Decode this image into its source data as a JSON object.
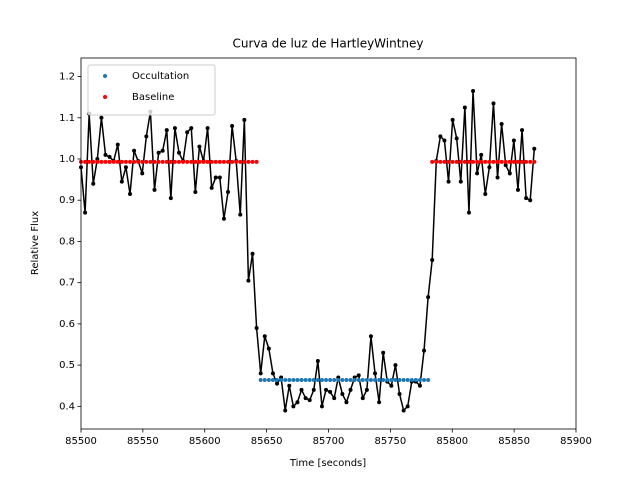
{
  "chart_data": {
    "type": "line",
    "title": "Curva de luz de HartleyWintney",
    "x_label": "Time [seconds]",
    "y_label": "Relative Flux",
    "xlim": [
      85500,
      85900
    ],
    "xticks": [
      85500,
      85550,
      85600,
      85650,
      85700,
      85750,
      85800,
      85850,
      85900
    ],
    "ylim": [
      0.345,
      1.245
    ],
    "yticks": [
      0.4,
      0.5,
      0.6,
      0.7,
      0.8,
      0.9,
      {
        "value": 1,
        "label": "1.0"
      },
      1.1,
      1.2
    ],
    "legend": "upper left",
    "x": [
      85500,
      85503.3,
      85506.6,
      85509.9,
      85513.2,
      85516.5,
      85519.8,
      85523.1,
      85526.4,
      85529.7,
      85533,
      85536.3,
      85539.6,
      85542.9,
      85546.2,
      85549.5,
      85552.8,
      85556.1,
      85559.4,
      85562.7,
      85566,
      85569.3,
      85572.6,
      85575.9,
      85579.2,
      85582.5,
      85585.8,
      85589.1,
      85592.4,
      85595.7,
      85599,
      85602.3,
      85605.6,
      85608.9,
      85612.2,
      85615.5,
      85618.8,
      85622.1,
      85625.4,
      85628.7,
      85632,
      85635.3,
      85638.6,
      85641.9,
      85645.2,
      85648.5,
      85651.8,
      85655.1,
      85658.4,
      85661.7,
      85665,
      85668.3,
      85671.6,
      85674.9,
      85678.2,
      85681.5,
      85684.8,
      85688.1,
      85691.4,
      85694.7,
      85698,
      85701.3,
      85704.6,
      85707.9,
      85711.2,
      85714.5,
      85717.8,
      85721.1,
      85724.4,
      85727.7,
      85731,
      85734.3,
      85737.6,
      85740.9,
      85744.2,
      85747.5,
      85750.8,
      85754.1,
      85757.4,
      85760.7,
      85764,
      85767.3,
      85770.6,
      85773.9,
      85777.2,
      85780.5,
      85783.8,
      85787.1,
      85790.4,
      85793.7,
      85797,
      85800.3,
      85803.6,
      85806.9,
      85810.2,
      85813.5,
      85816.8,
      85820.1,
      85823.4,
      85826.7,
      85830,
      85833.3,
      85836.6,
      85839.9,
      85843.2,
      85846.5,
      85849.8,
      85853.1,
      85856.4,
      85859.7,
      85863,
      85866.3
    ],
    "series": [
      {
        "color": "#000000",
        "style": "line-marker",
        "values": [
          0.98,
          0.87,
          1.11,
          0.94,
          1.0,
          1.1,
          1.01,
          1.005,
          0.995,
          1.035,
          0.945,
          0.98,
          0.915,
          1.02,
          0.995,
          0.965,
          1.055,
          1.115,
          0.925,
          1.015,
          1.02,
          1.07,
          0.905,
          1.075,
          1.015,
          0.995,
          1.065,
          1.075,
          0.92,
          1.03,
          0.995,
          1.075,
          0.93,
          0.955,
          0.955,
          0.855,
          0.92,
          1.08,
          0.995,
          0.865,
          1.095,
          0.705,
          0.77,
          0.59,
          0.48,
          0.57,
          0.54,
          0.48,
          0.455,
          0.47,
          0.39,
          0.45,
          0.4,
          0.41,
          0.44,
          0.42,
          0.415,
          0.44,
          0.51,
          0.4,
          0.44,
          0.435,
          0.42,
          0.47,
          0.43,
          0.41,
          0.44,
          0.47,
          0.475,
          0.42,
          0.44,
          0.57,
          0.48,
          0.41,
          0.53,
          0.46,
          0.45,
          0.5,
          0.43,
          0.39,
          0.4,
          0.46,
          0.46,
          0.45,
          0.535,
          0.665,
          0.755,
          0.995,
          1.055,
          1.045,
          0.945,
          1.095,
          1.05,
          0.945,
          1.125,
          0.87,
          1.165,
          0.965,
          1.01,
          0.915,
          0.98,
          1.135,
          0.955,
          1.085,
          0.985,
          0.965,
          1.045,
          0.925,
          1.07,
          0.905,
          0.9,
          1.025
        ]
      },
      {
        "name": "Occultation",
        "color": "#1f77b4",
        "style": "marker",
        "values": [
          null,
          null,
          null,
          null,
          null,
          null,
          null,
          null,
          null,
          null,
          null,
          null,
          null,
          null,
          null,
          null,
          null,
          null,
          null,
          null,
          null,
          null,
          null,
          null,
          null,
          null,
          null,
          null,
          null,
          null,
          null,
          null,
          null,
          null,
          null,
          null,
          null,
          null,
          null,
          null,
          null,
          null,
          null,
          null,
          0.464,
          0.464,
          0.464,
          0.464,
          0.464,
          0.464,
          0.464,
          0.464,
          0.464,
          0.464,
          0.464,
          0.464,
          0.464,
          0.464,
          0.464,
          0.464,
          0.464,
          0.464,
          0.464,
          0.464,
          0.464,
          0.464,
          0.464,
          0.464,
          0.464,
          0.464,
          0.464,
          0.464,
          0.464,
          0.464,
          0.464,
          0.464,
          0.464,
          0.464,
          0.464,
          0.464,
          0.464,
          0.464,
          0.464,
          0.464,
          0.464,
          0.464,
          null,
          null,
          null,
          null,
          null,
          null,
          null,
          null,
          null,
          null,
          null,
          null,
          null,
          null,
          null,
          null,
          null,
          null,
          null,
          null,
          null,
          null,
          null,
          null,
          null,
          null
        ]
      },
      {
        "name": "Baseline",
        "color": "#ff0000",
        "style": "marker",
        "values": [
          0.993,
          0.993,
          0.993,
          0.993,
          0.993,
          0.993,
          0.993,
          0.993,
          0.993,
          0.993,
          0.993,
          0.993,
          0.993,
          0.993,
          0.993,
          0.993,
          0.993,
          0.993,
          0.993,
          0.993,
          0.993,
          0.993,
          0.993,
          0.993,
          0.993,
          0.993,
          0.993,
          0.993,
          0.993,
          0.993,
          0.993,
          0.993,
          0.993,
          0.993,
          0.993,
          0.993,
          0.993,
          0.993,
          0.993,
          0.993,
          0.993,
          0.993,
          0.993,
          0.993,
          null,
          null,
          null,
          null,
          null,
          null,
          null,
          null,
          null,
          null,
          null,
          null,
          null,
          null,
          null,
          null,
          null,
          null,
          null,
          null,
          null,
          null,
          null,
          null,
          null,
          null,
          null,
          null,
          null,
          null,
          null,
          null,
          null,
          null,
          null,
          null,
          null,
          null,
          null,
          null,
          null,
          null,
          0.993,
          0.993,
          0.993,
          0.993,
          0.993,
          0.993,
          0.993,
          0.993,
          0.993,
          0.993,
          0.993,
          0.993,
          0.993,
          0.993,
          0.993,
          0.993,
          0.993,
          0.993,
          0.993,
          0.993,
          0.993,
          0.993,
          0.993,
          0.993,
          0.993,
          0.993
        ]
      }
    ]
  }
}
